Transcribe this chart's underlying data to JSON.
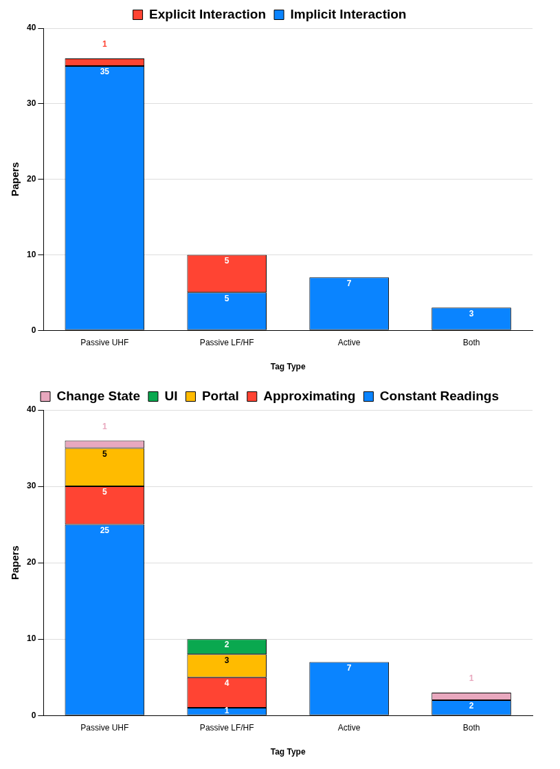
{
  "chart_data": [
    {
      "type": "bar",
      "stacked": true,
      "xlabel": "Tag Type",
      "ylabel": "Papers",
      "legend": "top",
      "grid": "y",
      "categories": [
        "Passive UHF",
        "Passive LF/HF",
        "Active",
        "Both"
      ],
      "ylim": [
        0,
        40
      ],
      "yticks": [
        0,
        10,
        20,
        30,
        40
      ],
      "series": [
        {
          "name": "Implicit Interaction",
          "color": "#0a84ff",
          "values": [
            35,
            5,
            7,
            3
          ],
          "value_labels": [
            "35",
            "5",
            "7",
            "3"
          ]
        },
        {
          "name": "Explicit Interaction",
          "color": "#ff4433",
          "values": [
            1,
            5,
            0,
            0
          ],
          "value_labels": [
            "1",
            "5",
            null,
            null
          ]
        }
      ]
    },
    {
      "type": "bar",
      "stacked": true,
      "xlabel": "Tag Type",
      "ylabel": "Papers",
      "legend": "top",
      "grid": "y",
      "categories": [
        "Passive UHF",
        "Passive LF/HF",
        "Active",
        "Both"
      ],
      "ylim": [
        0,
        40
      ],
      "yticks": [
        0,
        10,
        20,
        30,
        40
      ],
      "series": [
        {
          "name": "Constant Readings",
          "color": "#0a84ff",
          "values": [
            25,
            1,
            7,
            2
          ],
          "value_labels": [
            "25",
            "1",
            "7",
            "2"
          ]
        },
        {
          "name": "Approximating",
          "color": "#ff4433",
          "values": [
            5,
            4,
            0,
            0
          ],
          "value_labels": [
            "5",
            "4",
            null,
            null
          ]
        },
        {
          "name": "Portal",
          "color": "#ffbb00",
          "values": [
            5,
            3,
            0,
            0
          ],
          "value_labels": [
            "5",
            "3",
            null,
            null
          ]
        },
        {
          "name": "UI",
          "color": "#0aa84f",
          "values": [
            0,
            2,
            0,
            0
          ],
          "value_labels": [
            null,
            "2",
            null,
            null
          ]
        },
        {
          "name": "Change State",
          "color": "#e8a8be",
          "values": [
            1,
            0,
            0,
            1
          ],
          "value_labels": [
            "1",
            null,
            null,
            "1"
          ]
        }
      ]
    }
  ]
}
